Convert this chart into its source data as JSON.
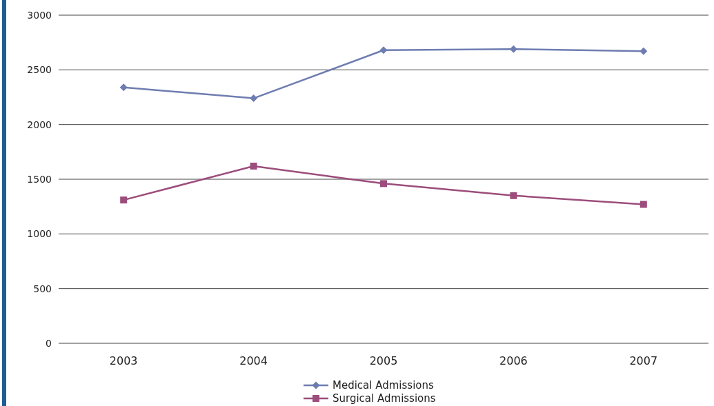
{
  "chart_data": {
    "type": "line",
    "categories": [
      "2003",
      "2004",
      "2005",
      "2006",
      "2007"
    ],
    "series": [
      {
        "name": "Medical Admissions",
        "color": "#6e7db1",
        "marker": "diamond",
        "values": [
          2340,
          2240,
          2680,
          2690,
          2670
        ]
      },
      {
        "name": "Surgical Admissions",
        "color": "#9c4d7b",
        "marker": "square",
        "values": [
          1310,
          1620,
          1460,
          1350,
          1270
        ]
      }
    ],
    "ylim": [
      0,
      3000
    ],
    "yticks": [
      0,
      500,
      1000,
      1500,
      2000,
      2500,
      3000
    ],
    "grid": "y",
    "legend": "bottom",
    "line_style": "solid"
  }
}
